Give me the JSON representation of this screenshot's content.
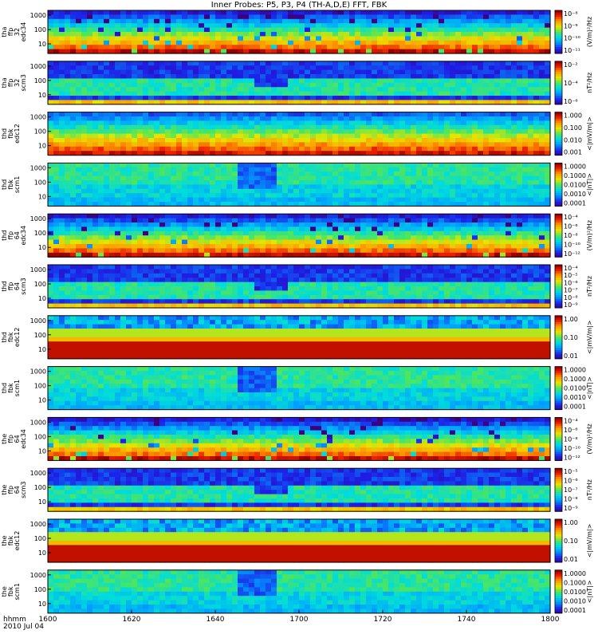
{
  "title": "Inner Probes: P5, P3, P4 (TH-A,D,E) FFT, FBK",
  "footer": {
    "hhmm": "hhmm",
    "date": "2010 Jul 04"
  },
  "colors": {
    "low": "#3b008f",
    "high": "#c00000"
  },
  "chart_data": {
    "type": "heatmap",
    "x_ticks": [
      "1600",
      "1620",
      "1640",
      "1700",
      "1720",
      "1740",
      "1800"
    ],
    "panels": [
      {
        "ylabel": [
          "tha",
          "ffp",
          "32",
          "edc34"
        ],
        "yticks": [
          "1000",
          "100",
          "10"
        ],
        "cbar_ticks": [
          "10⁻⁸",
          "10⁻⁹",
          "10⁻¹⁰",
          "10⁻¹¹"
        ],
        "cbar_label": "(V/m)²/Hz",
        "style": "efield"
      },
      {
        "ylabel": [
          "tha",
          "ffp",
          "32",
          "scm3"
        ],
        "yticks": [
          "1000",
          "100",
          "10"
        ],
        "cbar_ticks": [
          "10⁻²",
          "10⁻⁴",
          "10⁻⁶"
        ],
        "cbar_label": "nT²/Hz",
        "style": "bfield"
      },
      {
        "ylabel": [
          "thd",
          "fbk",
          "edc12"
        ],
        "yticks": [
          "1000",
          "100",
          "10"
        ],
        "cbar_ticks": [
          "1.000",
          "0.100",
          "0.010",
          "0.001"
        ],
        "cbar_label": "<|mV/m|>",
        "style": "fbk_e"
      },
      {
        "ylabel": [
          "thd",
          "fbk",
          "scm1"
        ],
        "yticks": [
          "1000",
          "100",
          "10"
        ],
        "cbar_ticks": [
          "1.0000",
          "0.1000",
          "0.0100",
          "0.0010",
          "0.0001"
        ],
        "cbar_label": "<|nT|>",
        "style": "fbk_b"
      },
      {
        "ylabel": [
          "thd",
          "ffp",
          "64",
          "edc34"
        ],
        "yticks": [
          "1000",
          "100",
          "10"
        ],
        "cbar_ticks": [
          "10⁻⁴",
          "10⁻⁶",
          "10⁻⁸",
          "10⁻¹⁰",
          "10⁻¹²"
        ],
        "cbar_label": "(V/m)²/Hz",
        "style": "efield"
      },
      {
        "ylabel": [
          "thd",
          "ffp",
          "64",
          "scm3"
        ],
        "yticks": [
          "1000",
          "100",
          "10"
        ],
        "cbar_ticks": [
          "10⁻⁴",
          "10⁻⁵",
          "10⁻⁶",
          "10⁻⁷",
          "10⁻⁸",
          "10⁻⁹"
        ],
        "cbar_label": "nT²/Hz",
        "style": "bfield"
      },
      {
        "ylabel": [
          "thd",
          "fbk",
          "edc12"
        ],
        "yticks": [
          "1000",
          "100",
          "10"
        ],
        "cbar_ticks": [
          "1.00",
          "0.10",
          "0.01"
        ],
        "cbar_label": "<|mV/m|>",
        "style": "fbk_e2"
      },
      {
        "ylabel": [
          "thd",
          "fbk",
          "scm1"
        ],
        "yticks": [
          "1000",
          "100",
          "10"
        ],
        "cbar_ticks": [
          "1.0000",
          "0.1000",
          "0.0100",
          "0.0010",
          "0.0001"
        ],
        "cbar_label": "<|nT|>",
        "style": "fbk_b"
      },
      {
        "ylabel": [
          "the",
          "ffp",
          "64",
          "edc34"
        ],
        "yticks": [
          "1000",
          "100",
          "10"
        ],
        "cbar_ticks": [
          "10⁻⁴",
          "10⁻⁶",
          "10⁻⁸",
          "10⁻¹⁰",
          "10⁻¹²"
        ],
        "cbar_label": "(V/m)²/Hz",
        "style": "efield"
      },
      {
        "ylabel": [
          "the",
          "ffp",
          "64",
          "scm3"
        ],
        "yticks": [
          "1000",
          "100",
          "10"
        ],
        "cbar_ticks": [
          "10⁻⁵",
          "10⁻⁶",
          "10⁻⁷",
          "10⁻⁸",
          "10⁻⁹"
        ],
        "cbar_label": "nT²/Hz",
        "style": "bfield"
      },
      {
        "ylabel": [
          "the",
          "fbk",
          "edc12"
        ],
        "yticks": [
          "1000",
          "100",
          "10"
        ],
        "cbar_ticks": [
          "1.00",
          "0.10",
          "0.01"
        ],
        "cbar_label": "<|mV/m|>",
        "style": "fbk_e2"
      },
      {
        "ylabel": [
          "the",
          "fbk",
          "scm1"
        ],
        "yticks": [
          "1000",
          "100",
          "10"
        ],
        "cbar_ticks": [
          "1.0000",
          "0.1000",
          "0.0100",
          "0.0010",
          "0.0001"
        ],
        "cbar_label": "<|nT|>",
        "style": "fbk_b"
      }
    ]
  }
}
